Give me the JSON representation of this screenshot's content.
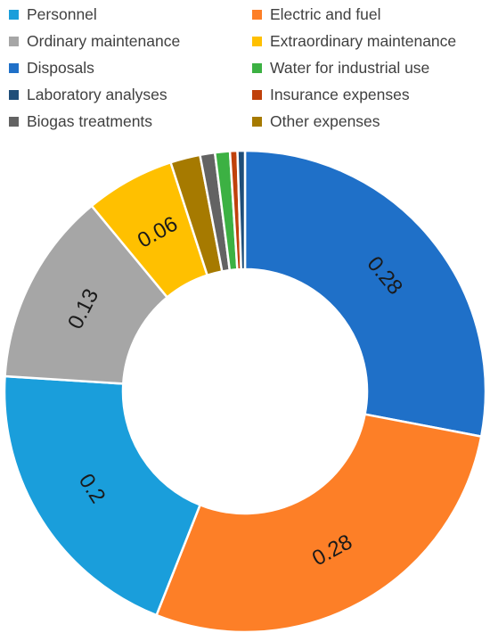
{
  "chart_data": {
    "type": "pie",
    "variant": "donut",
    "categories": [
      "Disposals",
      "Electric and fuel",
      "Personnel",
      "Ordinary maintenance",
      "Extraordinary maintenance",
      "Other expenses",
      "Biogas treatments",
      "Water for industrial use",
      "Insurance expenses",
      "Laboratory analyses"
    ],
    "values": [
      0.28,
      0.28,
      0.2,
      0.13,
      0.06,
      0.02,
      0.01,
      0.01,
      0.005,
      0.005
    ],
    "data_labels": [
      "0.28",
      "0.28",
      "0.2",
      "0.13",
      "0.06",
      "",
      "",
      "",
      "",
      ""
    ],
    "colors": [
      "#1f70c8",
      "#fd7f27",
      "#1a9edb",
      "#a6a6a6",
      "#ffc000",
      "#a67a00",
      "#636363",
      "#3cb143",
      "#c0410b",
      "#1f4e79"
    ],
    "legend_position": "top",
    "legend": [
      {
        "label": "Personnel",
        "color": "#1a9edb"
      },
      {
        "label": "Electric and fuel",
        "color": "#fd7f27"
      },
      {
        "label": "Ordinary maintenance",
        "color": "#a6a6a6"
      },
      {
        "label": "Extraordinary maintenance",
        "color": "#ffc000"
      },
      {
        "label": "Disposals",
        "color": "#1f70c8"
      },
      {
        "label": "Water for industrial use",
        "color": "#3cb143"
      },
      {
        "label": "Laboratory analyses",
        "color": "#1f4e79"
      },
      {
        "label": "Insurance expenses",
        "color": "#c0410b"
      },
      {
        "label": "Biogas treatments",
        "color": "#636363"
      },
      {
        "label": "Other expenses",
        "color": "#a67a00"
      }
    ]
  }
}
